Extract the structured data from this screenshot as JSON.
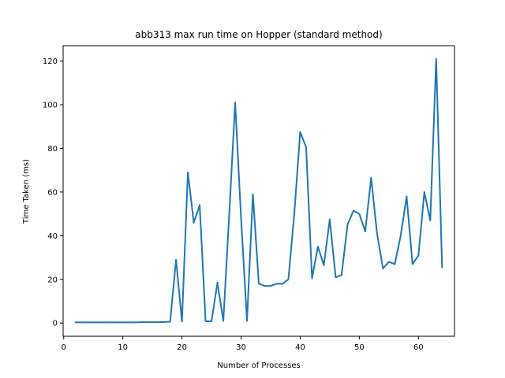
{
  "chart_data": {
    "type": "line",
    "title": "abb313 max run time on Hopper (standard method)",
    "xlabel": "Number of Processes",
    "ylabel": "Time Taken (ms)",
    "xlim": [
      -0.1,
      66.1
    ],
    "ylim": [
      -6.05,
      127.05
    ],
    "xticks": [
      0,
      10,
      20,
      30,
      40,
      50,
      60
    ],
    "yticks": [
      0,
      20,
      40,
      60,
      80,
      100,
      120
    ],
    "grid": false,
    "line_color": "#1f77b4",
    "series": [
      {
        "x": [
          2,
          3,
          4,
          5,
          6,
          7,
          8,
          9,
          10,
          11,
          12,
          13,
          14,
          15,
          16,
          17,
          18,
          19,
          20,
          21,
          22,
          23,
          24,
          25,
          26,
          27,
          28,
          29,
          30,
          31,
          32,
          33,
          34,
          35,
          36,
          37,
          38,
          39,
          40,
          41,
          42,
          43,
          44,
          45,
          46,
          47,
          48,
          49,
          50,
          51,
          52,
          53,
          54,
          55,
          56,
          57,
          58,
          59,
          60,
          61,
          62,
          63,
          64
        ],
        "values": [
          0.3,
          0.3,
          0.3,
          0.3,
          0.3,
          0.3,
          0.3,
          0.3,
          0.3,
          0.3,
          0.3,
          0.4,
          0.4,
          0.4,
          0.4,
          0.5,
          0.6,
          29,
          0.7,
          69,
          46,
          54,
          0.8,
          0.8,
          18.5,
          1,
          50,
          101,
          48,
          1,
          59,
          18,
          17,
          17,
          18,
          18,
          20,
          50,
          87.5,
          80.5,
          20.5,
          35,
          26.5,
          47.5,
          21,
          22,
          45,
          51.5,
          50,
          42,
          66.5,
          41,
          25,
          28,
          27,
          40,
          58,
          27,
          31,
          60,
          47,
          121,
          25.5
        ]
      }
    ]
  }
}
